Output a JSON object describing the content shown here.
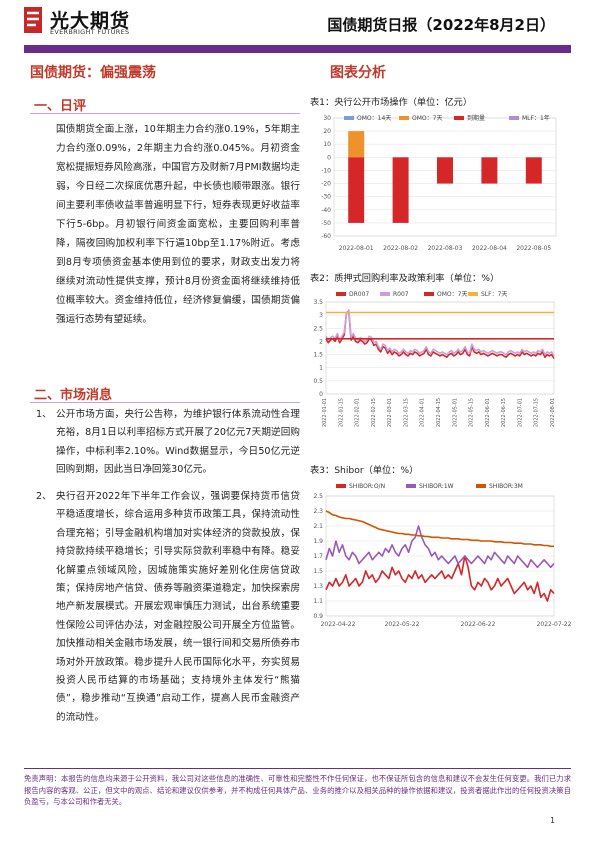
{
  "header": {
    "logo_cn": "光大期货",
    "logo_en": "EVERBRIGHT FUTURES",
    "report_title": "国债期货日报（2022年8月2日）"
  },
  "headline": "国债期货：偏强震荡",
  "charts_heading": "图表分析",
  "review": {
    "title": "一、日评",
    "paragraph": "国债期货全面上涨，10年期主力合约涨0.19%，5年期主力合约涨0.09%，2年期主力合约涨0.045%。月初资金宽松提振短券风险高涨，中国官方及财新7月PMI数据均走弱，今日经二次探底优惠升起，中长债也顺带跟涨。银行间主要利率债收益率普遍明显下行，短券表现更好收益率下行5-6bp。月初银行间资金面宽松，主要回购利率普降，隔夜回购加权利率下行逼10bp至1.17%附近。考虑到8月专项债资金基本使用到位的要求，财政支出发力将继续对流动性提供支撑，预计8月份资金面将继续维持低位概率较大。资金维持低位，经济修复偏缓，国债期货偏强运行态势有望延续。"
  },
  "news": {
    "title": "二、市场消息",
    "items": [
      {
        "num": "1、",
        "text": "公开市场方面，央行公告称，为维护银行体系流动性合理充裕，8月1日以利率招标方式开展了20亿元7天期逆回购操作，中标利率2.10%。Wind数据显示，今日50亿元逆回购到期，因此当日净回笼30亿元。"
      },
      {
        "num": "2、",
        "text": "央行召开2022年下半年工作会议，强调要保持货币信贷平稳适度增长，综合运用多种货币政策工具，保持流动性合理充裕；引导金融机构增加对实体经济的贷款投放，保持贷款持续平稳增长；引导实际贷款利率稳中有降。稳妥化解重点领域风险，因城施策实施好差别化住房信贷政策；保持房地产信贷、债券等融资渠道稳定，加快探索房地产新发展模式。开展宏观审慎压力测试，出台系统重要性保险公司评估办法，对金融控股公司开展全方位监管。加快推动相关金融市场发展，统一银行间和交易所债券市场对外开放政策。稳步提升人民币国际化水平，夯实贸易投资人民币结算的市场基础；支持境外主体发行“熊猫债”，稳步推动“互换通”启动工作，提高人民币金融资产的流动性。"
      }
    ]
  },
  "tables": [
    {
      "title": "表1：央行公开市场操作（单位：亿元）"
    },
    {
      "title": "表2：质押式回购利率及政策利率（单位：%）"
    },
    {
      "title": "表3：Shibor（单位：%）"
    }
  ],
  "chart_data": [
    {
      "type": "bar",
      "stacked": true,
      "categories": [
        "2022-08-01",
        "2022-08-02",
        "2022-08-03",
        "2022-08-04",
        "2022-08-05"
      ],
      "series": [
        {
          "name": "OMO：14天",
          "color": "#7b9ed8",
          "values": [
            0,
            0,
            0,
            0,
            0
          ]
        },
        {
          "name": "OMO：7天",
          "color": "#f0922b",
          "values": [
            20,
            0,
            0,
            0,
            0
          ]
        },
        {
          "name": "到期量",
          "color": "#d62728",
          "values": [
            -50,
            -50,
            -20,
            -20,
            -20
          ]
        },
        {
          "name": "MLF：1年",
          "color": "#b08cd9",
          "values": [
            0,
            0,
            0,
            0,
            0
          ]
        }
      ],
      "ylim": [
        -60,
        30
      ],
      "yticks": [
        30,
        20,
        10,
        0,
        -10,
        -20,
        -30,
        -40,
        -50,
        -60
      ],
      "grid": true,
      "legend": "top"
    },
    {
      "type": "line",
      "x_ticks": [
        "2022-01-01",
        "2022-01-15",
        "2022-02-01",
        "2022-02-15",
        "2022-03-01",
        "2022-03-15",
        "2022-04-01",
        "2022-04-15",
        "2022-05-01",
        "2022-05-15",
        "2022-06-01",
        "2022-06-15",
        "2022-07-01",
        "2022-07-15",
        "2022-08-01"
      ],
      "ylim": [
        0,
        3.5
      ],
      "yticks": [
        3.5,
        3,
        2.5,
        2,
        1.5,
        1,
        0.5,
        0
      ],
      "grid": true,
      "legend": "top",
      "series": [
        {
          "name": "DR007",
          "color": "#d62728",
          "values": [
            2.1,
            1.95,
            2.05,
            2.1,
            2.0,
            2.2,
            1.95,
            2.1,
            2.25,
            3.1,
            3.15,
            2.05,
            2.2,
            2.0,
            1.95,
            2.05,
            2.0,
            1.9,
            1.95,
            2.1,
            2.05,
            1.85,
            1.9,
            1.7,
            1.6,
            1.8,
            1.75,
            1.55,
            1.65,
            1.5,
            1.6,
            1.55,
            1.45,
            1.5,
            1.6,
            1.5,
            1.45,
            1.55,
            1.5,
            1.6,
            1.55,
            1.45,
            1.5,
            1.55,
            1.7,
            1.5,
            1.45,
            1.6,
            1.55,
            1.5,
            1.45,
            1.5,
            1.45,
            1.4,
            1.5,
            1.55,
            1.45,
            1.5,
            1.6,
            1.5,
            1.55,
            1.7,
            1.5,
            1.45,
            1.8,
            1.6,
            1.55,
            1.6,
            1.5,
            1.55,
            1.5,
            1.45,
            1.5,
            1.55,
            1.5,
            1.45,
            1.5,
            1.5,
            1.45,
            1.4,
            1.5,
            1.55,
            1.5,
            1.45,
            1.5,
            1.45,
            1.6,
            1.5,
            1.55,
            1.5,
            1.45,
            1.5,
            1.45,
            1.55,
            1.5,
            1.6,
            1.4,
            1.5,
            1.45,
            1.5,
            1.35
          ]
        },
        {
          "name": "R007",
          "color": "#c9a0dc",
          "values": [
            2.2,
            2.05,
            2.15,
            2.2,
            2.1,
            2.3,
            2.05,
            2.2,
            2.35,
            3.05,
            3.2,
            2.15,
            2.3,
            2.1,
            2.05,
            2.15,
            2.1,
            2.0,
            2.05,
            2.2,
            2.15,
            1.95,
            2.0,
            1.8,
            1.7,
            1.9,
            1.85,
            1.65,
            1.75,
            1.6,
            1.7,
            1.65,
            1.55,
            1.6,
            1.7,
            1.6,
            1.55,
            1.65,
            1.6,
            1.7,
            1.65,
            1.55,
            1.6,
            1.65,
            1.8,
            1.6,
            1.55,
            1.7,
            1.65,
            1.6,
            1.55,
            1.6,
            1.55,
            1.5,
            1.6,
            1.65,
            1.55,
            1.6,
            1.7,
            1.6,
            1.65,
            1.8,
            1.6,
            1.55,
            1.9,
            1.7,
            1.65,
            1.7,
            1.6,
            1.65,
            1.6,
            1.55,
            1.6,
            1.65,
            1.6,
            1.55,
            1.6,
            1.6,
            1.55,
            1.5,
            1.6,
            1.65,
            1.6,
            1.55,
            1.6,
            1.55,
            1.7,
            1.6,
            1.65,
            1.6,
            1.55,
            1.6,
            1.55,
            1.65,
            1.6,
            1.7,
            1.5,
            1.6,
            1.55,
            1.6,
            1.45
          ]
        },
        {
          "name": "OMO：7天",
          "color": "#d62728",
          "values": [
            2.1,
            2.1,
            2.1,
            2.1,
            2.1,
            2.1,
            2.1,
            2.1,
            2.1,
            2.1,
            2.1,
            2.1,
            2.1,
            2.1,
            2.1,
            2.1,
            2.1,
            2.1,
            2.1,
            2.1,
            2.1,
            2.1,
            2.1,
            2.1,
            2.1,
            2.1,
            2.1,
            2.1,
            2.1,
            2.1,
            2.1,
            2.1,
            2.1,
            2.1,
            2.1,
            2.1,
            2.1,
            2.1,
            2.1,
            2.1,
            2.1,
            2.1,
            2.1,
            2.1,
            2.1,
            2.1,
            2.1,
            2.1,
            2.1,
            2.1,
            2.1,
            2.1,
            2.1,
            2.1,
            2.1,
            2.1,
            2.1,
            2.1,
            2.1,
            2.1,
            2.1,
            2.1,
            2.1,
            2.1,
            2.1,
            2.1,
            2.1,
            2.1,
            2.1,
            2.1,
            2.1,
            2.1,
            2.1,
            2.1,
            2.1,
            2.1,
            2.1,
            2.1,
            2.1,
            2.1,
            2.1,
            2.1,
            2.1,
            2.1,
            2.1,
            2.1,
            2.1,
            2.1,
            2.1,
            2.1,
            2.1,
            2.1,
            2.1,
            2.1,
            2.1,
            2.1,
            2.1,
            2.1,
            2.1,
            2.1,
            2.1
          ]
        },
        {
          "name": "SLF：7天",
          "color": "#f5b041",
          "values": [
            3.1,
            3.1,
            3.1,
            3.1,
            3.1,
            3.1,
            3.1,
            3.1,
            3.1,
            3.1,
            3.1,
            3.1,
            3.1,
            3.1,
            3.1,
            3.1,
            3.1,
            3.1,
            3.1,
            3.1,
            3.1,
            3.1,
            3.1,
            3.1,
            3.1,
            3.1,
            3.1,
            3.1,
            3.1,
            3.1,
            3.1,
            3.1,
            3.1,
            3.1,
            3.1,
            3.1,
            3.1,
            3.1,
            3.1,
            3.1,
            3.1,
            3.1,
            3.1,
            3.1,
            3.1,
            3.1,
            3.1,
            3.1,
            3.1,
            3.1,
            3.1,
            3.1,
            3.1,
            3.1,
            3.1,
            3.1,
            3.1,
            3.1,
            3.1,
            3.1,
            3.1,
            3.1,
            3.1,
            3.1,
            3.1,
            3.1,
            3.1,
            3.1,
            3.1,
            3.1,
            3.1,
            3.1,
            3.1,
            3.1,
            3.1,
            3.1,
            3.1,
            3.1,
            3.1,
            3.1,
            3.1,
            3.1,
            3.1,
            3.1,
            3.1,
            3.1,
            3.1,
            3.1,
            3.1,
            3.1,
            3.1,
            3.1,
            3.1,
            3.1,
            3.1,
            3.1,
            3.1,
            3.1,
            3.1,
            3.1,
            3.1
          ]
        }
      ]
    },
    {
      "type": "line",
      "x_ticks": [
        "2022-04-22",
        "2022-05-22",
        "2022-06-22",
        "2022-07-22"
      ],
      "ylim": [
        0.9,
        2.5
      ],
      "yticks": [
        2.5,
        2.3,
        2.1,
        1.9,
        1.7,
        1.5,
        1.3,
        1.1,
        0.9
      ],
      "grid": true,
      "legend": "top",
      "series": [
        {
          "name": "SHIBOR:O/N",
          "color": "#d62728",
          "values": [
            1.25,
            1.35,
            1.3,
            1.4,
            1.3,
            1.35,
            1.45,
            1.3,
            1.35,
            1.4,
            1.3,
            1.35,
            1.5,
            1.4,
            1.45,
            1.35,
            1.4,
            1.5,
            1.45,
            1.4,
            1.55,
            1.45,
            1.5,
            1.4,
            1.35,
            1.45,
            1.4,
            1.5,
            1.4,
            1.45,
            1.35,
            1.4,
            1.45,
            1.4,
            1.45,
            1.5,
            1.4,
            1.45,
            1.4,
            1.5,
            1.6,
            1.45,
            1.7,
            1.55,
            1.3,
            1.25,
            1.35,
            1.3,
            1.4,
            1.35,
            1.25,
            1.3,
            1.4,
            1.3,
            1.35,
            1.4,
            1.3,
            1.2,
            1.25,
            1.3,
            1.35,
            1.25,
            1.3,
            1.2,
            1.35,
            1.15,
            1.2,
            1.1,
            1.25,
            1.2
          ]
        },
        {
          "name": "SHIBOR:1W",
          "color": "#9b59b6",
          "values": [
            1.65,
            1.8,
            1.7,
            1.9,
            1.75,
            1.85,
            1.7,
            1.65,
            1.75,
            1.7,
            1.6,
            1.65,
            1.7,
            1.75,
            1.65,
            1.7,
            1.75,
            1.7,
            1.8,
            1.75,
            1.85,
            1.75,
            1.7,
            1.8,
            1.85,
            1.75,
            1.9,
            1.95,
            2.1,
            1.95,
            1.85,
            1.8,
            1.7,
            1.75,
            1.65,
            1.7,
            1.65,
            1.6,
            1.65,
            1.7,
            1.6,
            1.65,
            1.7,
            1.65,
            1.6,
            1.65,
            1.7,
            1.65,
            1.6,
            1.7,
            1.65,
            1.75,
            1.7,
            1.65,
            1.6,
            1.7,
            1.65,
            1.6,
            1.7,
            1.65,
            1.6,
            1.55,
            1.65,
            1.6,
            1.55,
            1.6,
            1.65,
            1.6,
            1.55,
            1.6
          ]
        },
        {
          "name": "SHIBOR:3M",
          "color": "#d35400",
          "values": [
            2.3,
            2.28,
            2.25,
            2.24,
            2.22,
            2.21,
            2.2,
            2.2,
            2.19,
            2.18,
            2.17,
            2.16,
            2.14,
            2.12,
            2.1,
            2.08,
            2.06,
            2.05,
            2.04,
            2.03,
            2.02,
            2.01,
            2.0,
            2.0,
            1.99,
            1.99,
            1.98,
            1.98,
            1.97,
            1.97,
            1.96,
            1.96,
            1.95,
            1.95,
            1.95,
            1.94,
            1.94,
            1.94,
            1.93,
            1.93,
            1.93,
            1.92,
            1.92,
            1.92,
            1.91,
            1.91,
            1.91,
            1.9,
            1.9,
            1.9,
            1.9,
            1.89,
            1.89,
            1.89,
            1.88,
            1.88,
            1.88,
            1.87,
            1.87,
            1.87,
            1.86,
            1.86,
            1.86,
            1.85,
            1.85,
            1.85,
            1.84,
            1.84,
            1.83,
            1.83
          ]
        }
      ]
    }
  ],
  "disclaimer": "免责声明：本报告的信息均来源于公开资料，我公司对这些信息的准确性、可靠性和完整性不作任何保证，也不保证所包含的信息和建议不会发生任何变更。我们已力求报告内容的客观、公正，但文中的观点、结论和建议仅供参考，并不构成任何具体产品、业务的推介以及相关品种的操作依据和建议，投资者据此作出的任何投资决策自负盈亏，与本公司和作者无关。",
  "page_number": "1",
  "colors": {
    "brand": "#6a2c8a",
    "accent": "#c0392b"
  }
}
